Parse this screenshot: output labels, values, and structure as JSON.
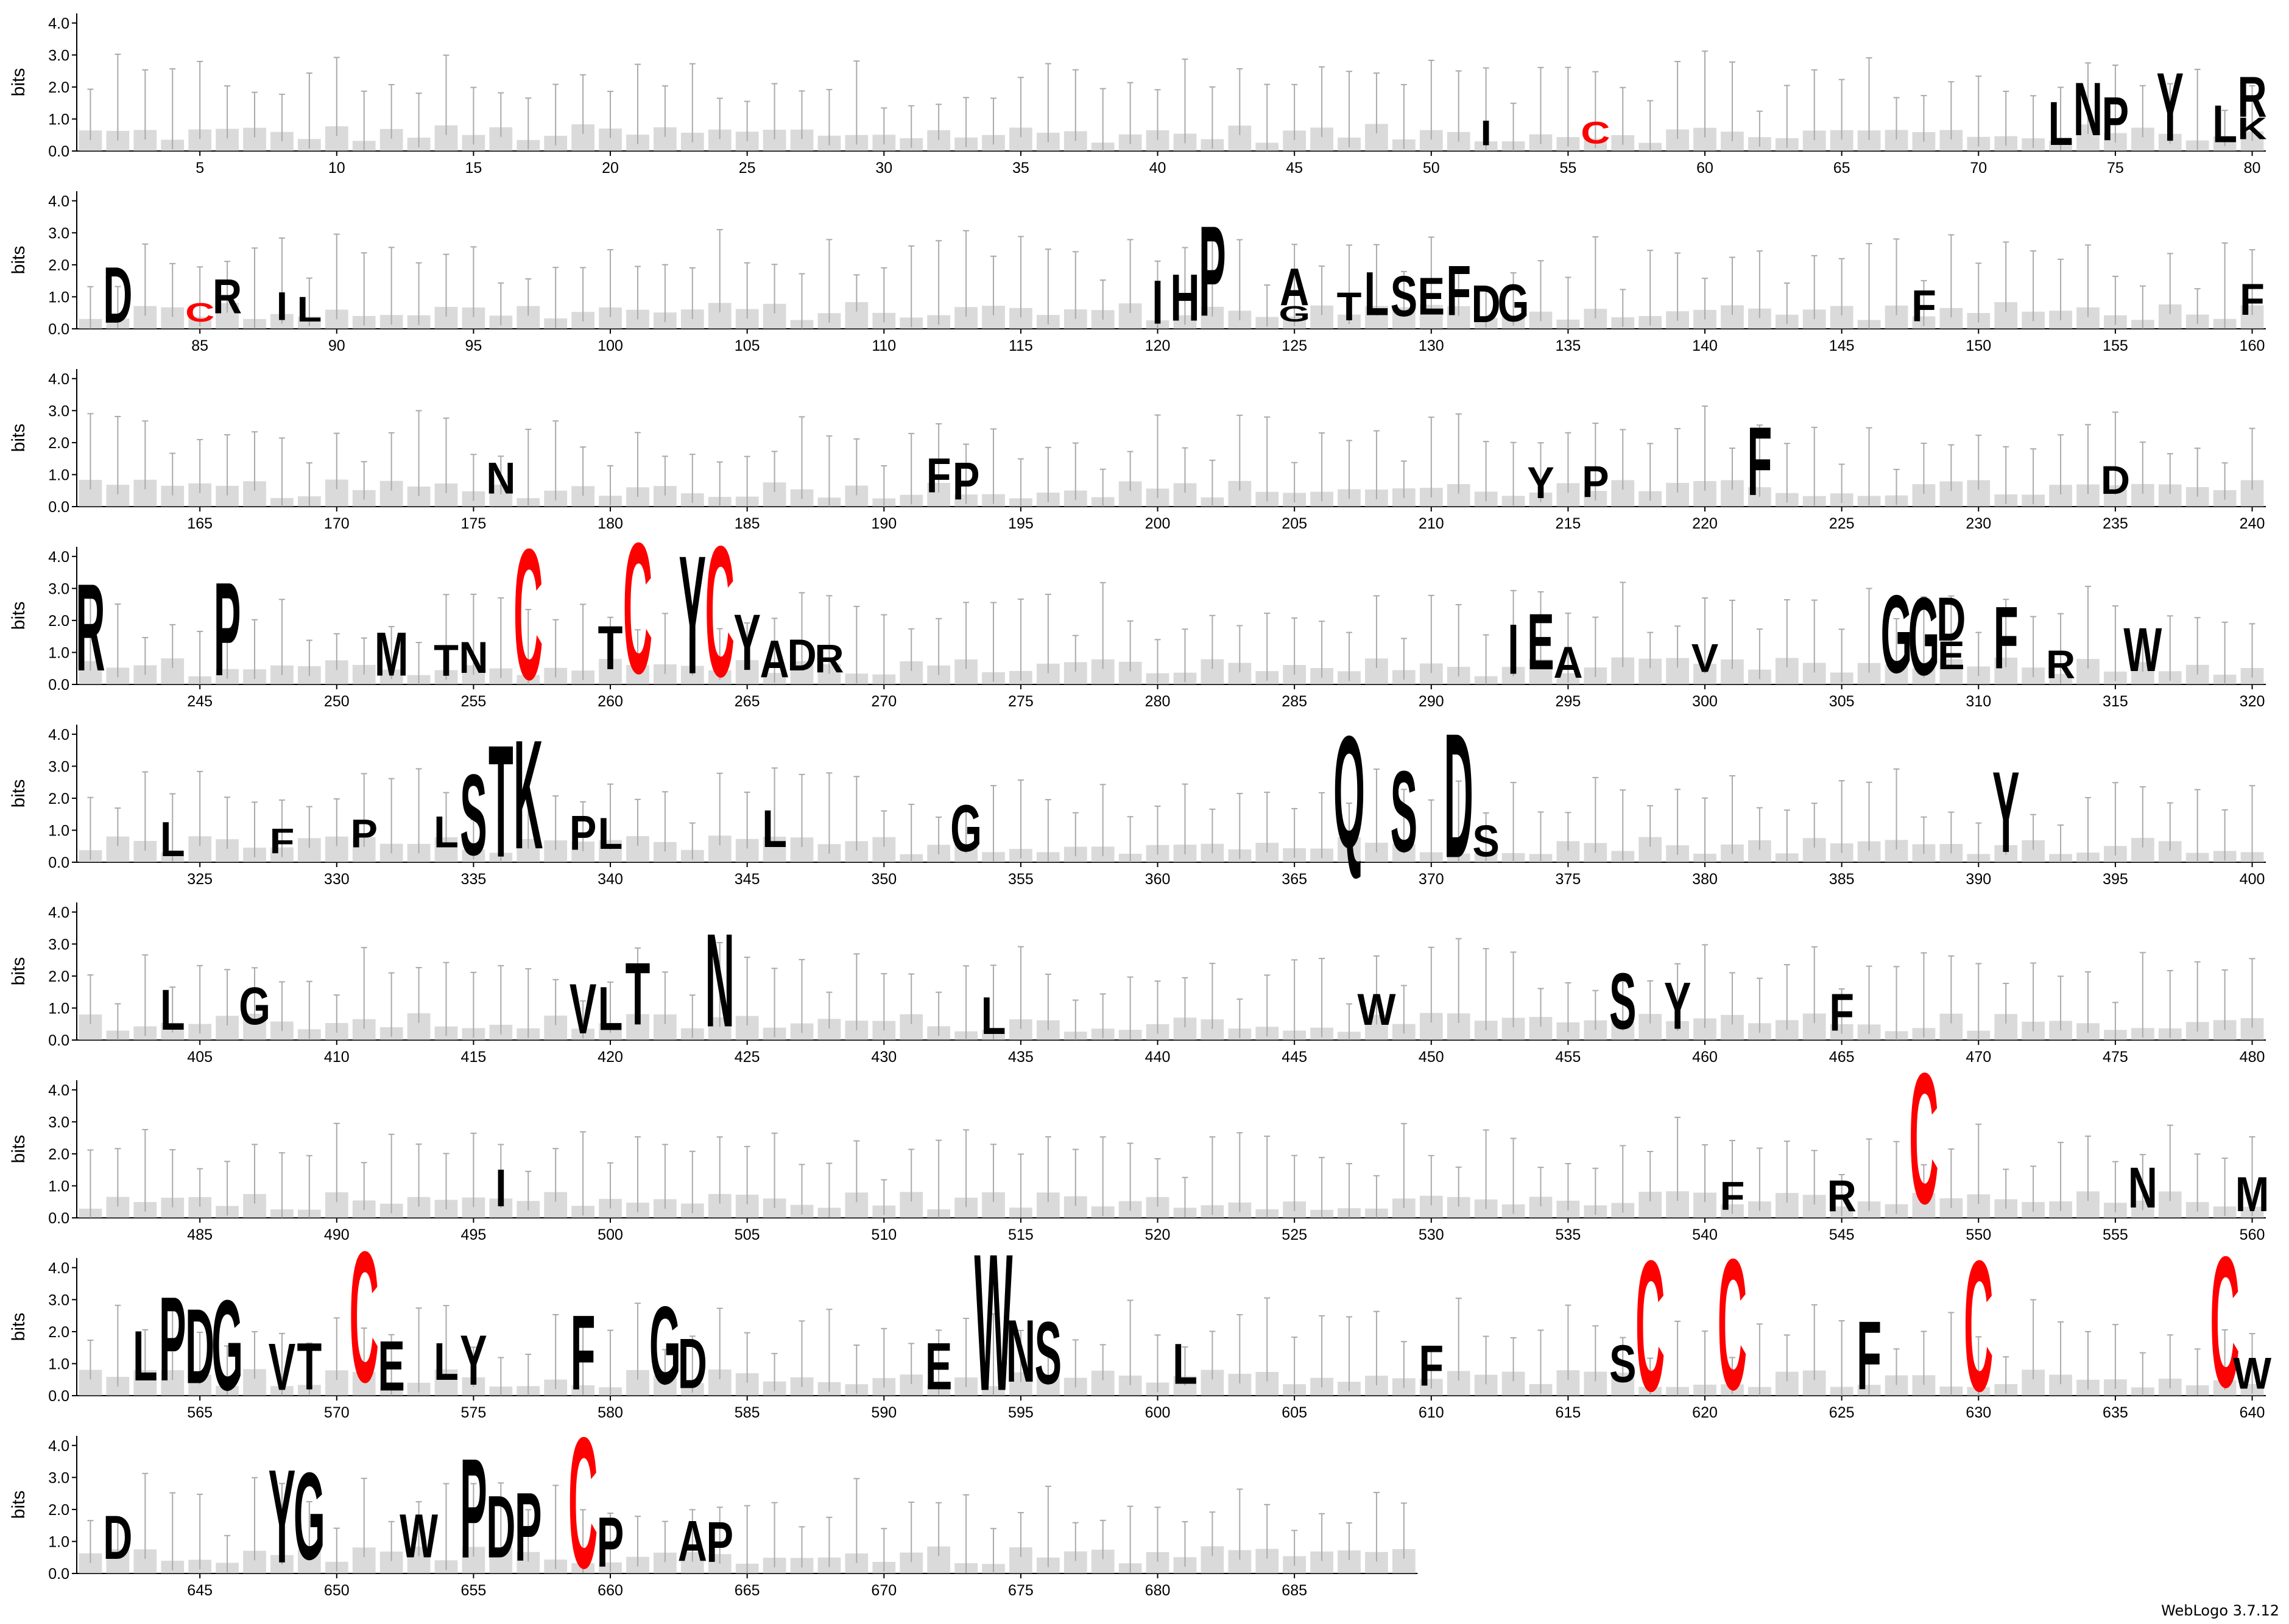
{
  "chart_data": {
    "type": "sequence_logo",
    "ylabel": "bits",
    "ylim": [
      0,
      4.3
    ],
    "y_ticks": [
      "0.0",
      "1.0",
      "2.0",
      "3.0",
      "4.0"
    ],
    "positions_per_row": 80,
    "total_positions": 689,
    "first_row_start": 1,
    "rows_start": [
      1,
      81,
      161,
      241,
      321,
      401,
      481,
      561,
      641
    ],
    "x_tick_step": 5,
    "highlight_color": "#ff0000",
    "letter_color": "#000000",
    "columns": [
      {
        "pos": 52,
        "letters": [
          {
            "c": "I",
            "h": 0.8
          }
        ]
      },
      {
        "pos": 56,
        "letters": [
          {
            "c": "C",
            "h": 0.7,
            "hl": true
          }
        ]
      },
      {
        "pos": 73,
        "letters": [
          {
            "c": "L",
            "h": 1.4
          }
        ]
      },
      {
        "pos": 74,
        "letters": [
          {
            "c": "N",
            "h": 1.7
          }
        ]
      },
      {
        "pos": 75,
        "letters": [
          {
            "c": "P",
            "h": 1.4
          }
        ]
      },
      {
        "pos": 77,
        "letters": [
          {
            "c": "Y",
            "h": 2.2
          }
        ]
      },
      {
        "pos": 79,
        "letters": [
          {
            "c": "L",
            "h": 1.2
          }
        ]
      },
      {
        "pos": 80,
        "letters": [
          {
            "c": "R",
            "h": 1.3
          },
          {
            "c": "K",
            "h": 0.7
          }
        ]
      },
      {
        "pos": 82,
        "letters": [
          {
            "c": "D",
            "h": 1.8
          }
        ]
      },
      {
        "pos": 85,
        "letters": [
          {
            "c": "C",
            "h": 0.6,
            "hl": true
          }
        ]
      },
      {
        "pos": 86,
        "letters": [
          {
            "c": "R",
            "h": 1.1
          }
        ]
      },
      {
        "pos": 88,
        "letters": [
          {
            "c": "I",
            "h": 0.9
          }
        ]
      },
      {
        "pos": 89,
        "letters": [
          {
            "c": "L",
            "h": 0.8
          }
        ]
      },
      {
        "pos": 120,
        "letters": [
          {
            "c": "I",
            "h": 1.4
          }
        ]
      },
      {
        "pos": 121,
        "letters": [
          {
            "c": "H",
            "h": 1.5
          }
        ]
      },
      {
        "pos": 122,
        "letters": [
          {
            "c": "P",
            "h": 2.9
          }
        ]
      },
      {
        "pos": 125,
        "letters": [
          {
            "c": "A",
            "h": 1.2
          },
          {
            "c": "G",
            "h": 0.5
          }
        ]
      },
      {
        "pos": 127,
        "letters": [
          {
            "c": "T",
            "h": 0.9
          }
        ]
      },
      {
        "pos": 128,
        "letters": [
          {
            "c": "L",
            "h": 1.4
          }
        ]
      },
      {
        "pos": 129,
        "letters": [
          {
            "c": "S",
            "h": 1.3
          }
        ]
      },
      {
        "pos": 130,
        "letters": [
          {
            "c": "E",
            "h": 1.2
          }
        ]
      },
      {
        "pos": 131,
        "letters": [
          {
            "c": "F",
            "h": 1.6
          }
        ]
      },
      {
        "pos": 132,
        "letters": [
          {
            "c": "D",
            "h": 1.2
          }
        ]
      },
      {
        "pos": 133,
        "letters": [
          {
            "c": "G",
            "h": 1.2
          }
        ]
      },
      {
        "pos": 148,
        "letters": [
          {
            "c": "F",
            "h": 1.0
          }
        ]
      },
      {
        "pos": 160,
        "letters": [
          {
            "c": "F",
            "h": 1.0
          }
        ]
      },
      {
        "pos": 176,
        "letters": [
          {
            "c": "N",
            "h": 1.0
          }
        ]
      },
      {
        "pos": 192,
        "letters": [
          {
            "c": "F",
            "h": 1.1
          }
        ]
      },
      {
        "pos": 193,
        "letters": [
          {
            "c": "P",
            "h": 1.2
          }
        ]
      },
      {
        "pos": 214,
        "letters": [
          {
            "c": "Y",
            "h": 1.0
          }
        ]
      },
      {
        "pos": 216,
        "letters": [
          {
            "c": "P",
            "h": 1.0
          }
        ]
      },
      {
        "pos": 222,
        "letters": [
          {
            "c": "F",
            "h": 2.2
          }
        ]
      },
      {
        "pos": 235,
        "letters": [
          {
            "c": "D",
            "h": 0.9
          }
        ]
      },
      {
        "pos": 241,
        "letters": [
          {
            "c": "R",
            "h": 2.8
          }
        ]
      },
      {
        "pos": 246,
        "letters": [
          {
            "c": "P",
            "h": 3.0
          }
        ]
      },
      {
        "pos": 252,
        "letters": [
          {
            "c": "M",
            "h": 1.4
          }
        ]
      },
      {
        "pos": 254,
        "letters": [
          {
            "c": "T",
            "h": 1.0
          }
        ]
      },
      {
        "pos": 255,
        "letters": [
          {
            "c": "N",
            "h": 1.0
          }
        ]
      },
      {
        "pos": 257,
        "letters": [
          {
            "c": "C",
            "h": 4.2,
            "hl": true
          }
        ]
      },
      {
        "pos": 260,
        "letters": [
          {
            "c": "T",
            "h": 1.4
          }
        ]
      },
      {
        "pos": 261,
        "letters": [
          {
            "c": "C",
            "h": 4.2,
            "hl": true
          }
        ]
      },
      {
        "pos": 263,
        "letters": [
          {
            "c": "Y",
            "h": 3.8
          }
        ]
      },
      {
        "pos": 264,
        "letters": [
          {
            "c": "C",
            "h": 4.2,
            "hl": true
          }
        ]
      },
      {
        "pos": 265,
        "letters": [
          {
            "c": "Y",
            "h": 1.8
          }
        ]
      },
      {
        "pos": 266,
        "letters": [
          {
            "c": "A",
            "h": 1.2
          }
        ]
      },
      {
        "pos": 267,
        "letters": [
          {
            "c": "D",
            "h": 1.0
          }
        ]
      },
      {
        "pos": 268,
        "letters": [
          {
            "c": "R",
            "h": 0.9
          }
        ]
      },
      {
        "pos": 293,
        "letters": [
          {
            "c": "I",
            "h": 1.6
          }
        ]
      },
      {
        "pos": 294,
        "letters": [
          {
            "c": "E",
            "h": 1.8
          }
        ]
      },
      {
        "pos": 295,
        "letters": [
          {
            "c": "A",
            "h": 1.0
          }
        ]
      },
      {
        "pos": 300,
        "letters": [
          {
            "c": "V",
            "h": 0.9
          }
        ]
      },
      {
        "pos": 307,
        "letters": [
          {
            "c": "G",
            "h": 2.5
          }
        ]
      },
      {
        "pos": 308,
        "letters": [
          {
            "c": "G",
            "h": 2.5
          }
        ]
      },
      {
        "pos": 309,
        "letters": [
          {
            "c": "D",
            "h": 1.4
          },
          {
            "c": "E",
            "h": 0.9
          }
        ]
      },
      {
        "pos": 311,
        "letters": [
          {
            "c": "F",
            "h": 2.0
          }
        ]
      },
      {
        "pos": 313,
        "letters": [
          {
            "c": "R",
            "h": 0.9
          }
        ]
      },
      {
        "pos": 316,
        "letters": [
          {
            "c": "W",
            "h": 1.4
          }
        ]
      },
      {
        "pos": 324,
        "letters": [
          {
            "c": "L",
            "h": 1.1
          }
        ]
      },
      {
        "pos": 328,
        "letters": [
          {
            "c": "F",
            "h": 0.8
          }
        ]
      },
      {
        "pos": 331,
        "letters": [
          {
            "c": "P",
            "h": 0.9
          }
        ]
      },
      {
        "pos": 334,
        "letters": [
          {
            "c": "L",
            "h": 1.0
          }
        ]
      },
      {
        "pos": 335,
        "letters": [
          {
            "c": "S",
            "h": 2.6
          }
        ]
      },
      {
        "pos": 336,
        "letters": [
          {
            "c": "T",
            "h": 3.6
          }
        ]
      },
      {
        "pos": 337,
        "letters": [
          {
            "c": "K",
            "h": 3.5
          }
        ]
      },
      {
        "pos": 339,
        "letters": [
          {
            "c": "P",
            "h": 1.1
          }
        ]
      },
      {
        "pos": 340,
        "letters": [
          {
            "c": "L",
            "h": 1.0
          }
        ]
      },
      {
        "pos": 346,
        "letters": [
          {
            "c": "L",
            "h": 1.2
          }
        ]
      },
      {
        "pos": 353,
        "letters": [
          {
            "c": "G",
            "h": 1.5
          }
        ]
      },
      {
        "pos": 367,
        "letters": [
          {
            "c": "Q",
            "h": 3.6
          }
        ]
      },
      {
        "pos": 369,
        "letters": [
          {
            "c": "S",
            "h": 2.6
          }
        ]
      },
      {
        "pos": 371,
        "letters": [
          {
            "c": "D",
            "h": 4.0
          }
        ]
      },
      {
        "pos": 372,
        "letters": [
          {
            "c": "S",
            "h": 1.0
          }
        ]
      },
      {
        "pos": 391,
        "letters": [
          {
            "c": "Y",
            "h": 2.6
          }
        ]
      },
      {
        "pos": 404,
        "letters": [
          {
            "c": "L",
            "h": 1.3
          }
        ]
      },
      {
        "pos": 407,
        "letters": [
          {
            "c": "G",
            "h": 1.2
          }
        ]
      },
      {
        "pos": 419,
        "letters": [
          {
            "c": "V",
            "h": 1.6
          }
        ]
      },
      {
        "pos": 420,
        "letters": [
          {
            "c": "L",
            "h": 1.4
          }
        ]
      },
      {
        "pos": 421,
        "letters": [
          {
            "c": "T",
            "h": 2.0
          }
        ]
      },
      {
        "pos": 424,
        "letters": [
          {
            "c": "N",
            "h": 3.0
          }
        ]
      },
      {
        "pos": 434,
        "letters": [
          {
            "c": "L",
            "h": 1.2
          }
        ]
      },
      {
        "pos": 448,
        "letters": [
          {
            "c": "W",
            "h": 1.0
          }
        ]
      },
      {
        "pos": 457,
        "letters": [
          {
            "c": "S",
            "h": 1.8
          }
        ]
      },
      {
        "pos": 459,
        "letters": [
          {
            "c": "Y",
            "h": 1.5
          }
        ]
      },
      {
        "pos": 465,
        "letters": [
          {
            "c": "F",
            "h": 1.2
          }
        ]
      },
      {
        "pos": 496,
        "letters": [
          {
            "c": "I",
            "h": 1.2
          }
        ]
      },
      {
        "pos": 541,
        "letters": [
          {
            "c": "F",
            "h": 0.9
          }
        ]
      },
      {
        "pos": 545,
        "letters": [
          {
            "c": "R",
            "h": 1.0
          }
        ]
      },
      {
        "pos": 548,
        "letters": [
          {
            "c": "C",
            "h": 4.2,
            "hl": true
          }
        ]
      },
      {
        "pos": 556,
        "letters": [
          {
            "c": "N",
            "h": 1.3
          }
        ]
      },
      {
        "pos": 560,
        "letters": [
          {
            "c": "M",
            "h": 1.1
          }
        ]
      },
      {
        "pos": 563,
        "letters": [
          {
            "c": "L",
            "h": 1.6
          }
        ]
      },
      {
        "pos": 564,
        "letters": [
          {
            "c": "P",
            "h": 2.7
          }
        ]
      },
      {
        "pos": 565,
        "letters": [
          {
            "c": "D",
            "h": 2.4
          }
        ]
      },
      {
        "pos": 566,
        "letters": [
          {
            "c": "G",
            "h": 2.9
          }
        ]
      },
      {
        "pos": 568,
        "letters": [
          {
            "c": "V",
            "h": 1.5
          }
        ]
      },
      {
        "pos": 569,
        "letters": [
          {
            "c": "T",
            "h": 1.5
          }
        ]
      },
      {
        "pos": 571,
        "letters": [
          {
            "c": "C",
            "h": 4.2,
            "hl": true
          }
        ]
      },
      {
        "pos": 572,
        "letters": [
          {
            "c": "E",
            "h": 1.6
          }
        ]
      },
      {
        "pos": 574,
        "letters": [
          {
            "c": "L",
            "h": 1.2
          }
        ]
      },
      {
        "pos": 575,
        "letters": [
          {
            "c": "Y",
            "h": 1.6
          }
        ]
      },
      {
        "pos": 579,
        "letters": [
          {
            "c": "F",
            "h": 2.4
          }
        ]
      },
      {
        "pos": 582,
        "letters": [
          {
            "c": "G",
            "h": 2.5
          }
        ]
      },
      {
        "pos": 583,
        "letters": [
          {
            "c": "D",
            "h": 1.6
          }
        ]
      },
      {
        "pos": 592,
        "letters": [
          {
            "c": "E",
            "h": 1.5
          }
        ]
      },
      {
        "pos": 594,
        "letters": [
          {
            "c": "W",
            "h": 4.4
          }
        ]
      },
      {
        "pos": 595,
        "letters": [
          {
            "c": "N",
            "h": 2.0
          }
        ]
      },
      {
        "pos": 596,
        "letters": [
          {
            "c": "S",
            "h": 2.0
          }
        ]
      },
      {
        "pos": 601,
        "letters": [
          {
            "c": "L",
            "h": 1.3
          }
        ]
      },
      {
        "pos": 610,
        "letters": [
          {
            "c": "F",
            "h": 1.3
          }
        ]
      },
      {
        "pos": 617,
        "letters": [
          {
            "c": "S",
            "h": 1.2
          }
        ]
      },
      {
        "pos": 618,
        "letters": [
          {
            "c": "C",
            "h": 4.2,
            "hl": true
          }
        ]
      },
      {
        "pos": 621,
        "letters": [
          {
            "c": "C",
            "h": 4.2,
            "hl": true
          }
        ]
      },
      {
        "pos": 626,
        "letters": [
          {
            "c": "F",
            "h": 2.2
          }
        ]
      },
      {
        "pos": 630,
        "letters": [
          {
            "c": "C",
            "h": 4.2,
            "hl": true
          }
        ]
      },
      {
        "pos": 639,
        "letters": [
          {
            "c": "C",
            "h": 4.2,
            "hl": true
          }
        ]
      },
      {
        "pos": 640,
        "letters": [
          {
            "c": "W",
            "h": 1.0
          }
        ]
      },
      {
        "pos": 642,
        "letters": [
          {
            "c": "D",
            "h": 1.4
          }
        ]
      },
      {
        "pos": 648,
        "letters": [
          {
            "c": "Y",
            "h": 3.0
          }
        ]
      },
      {
        "pos": 649,
        "letters": [
          {
            "c": "G",
            "h": 2.8
          }
        ]
      },
      {
        "pos": 653,
        "letters": [
          {
            "c": "W",
            "h": 1.4
          }
        ]
      },
      {
        "pos": 655,
        "letters": [
          {
            "c": "P",
            "h": 3.2
          }
        ]
      },
      {
        "pos": 656,
        "letters": [
          {
            "c": "D",
            "h": 2.0
          }
        ]
      },
      {
        "pos": 657,
        "letters": [
          {
            "c": "P",
            "h": 2.2
          }
        ]
      },
      {
        "pos": 659,
        "letters": [
          {
            "c": "C",
            "h": 4.2,
            "hl": true
          }
        ]
      },
      {
        "pos": 660,
        "letters": [
          {
            "c": "P",
            "h": 1.6
          }
        ]
      },
      {
        "pos": 663,
        "letters": [
          {
            "c": "A",
            "h": 1.3
          }
        ]
      },
      {
        "pos": 664,
        "letters": [
          {
            "c": "P",
            "h": 1.3
          }
        ]
      }
    ],
    "credit": "WebLogo 3.7.12"
  }
}
